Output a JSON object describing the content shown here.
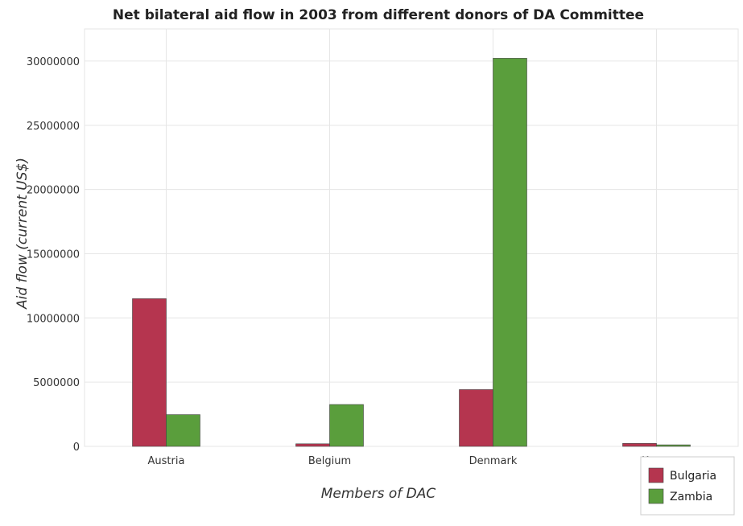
{
  "chart_data": {
    "type": "bar",
    "title": "Net bilateral aid flow in 2003 from different donors of DA Committee",
    "xlabel": "Members of DAC",
    "ylabel": "Aid flow (current US$)",
    "categories": [
      "Austria",
      "Belgium",
      "Denmark",
      "Korea"
    ],
    "series": [
      {
        "name": "Bulgaria",
        "color": "#b5354f",
        "values": [
          11500000,
          200000,
          4420000,
          230000
        ]
      },
      {
        "name": "Zambia",
        "color": "#5a9e3c",
        "values": [
          2470000,
          3260000,
          30220000,
          120000
        ]
      }
    ],
    "ylim": [
      0,
      32500000
    ],
    "yticks": [
      0,
      5000000,
      10000000,
      15000000,
      20000000,
      25000000,
      30000000
    ],
    "ytick_labels": [
      "0",
      "5000000",
      "10000000",
      "15000000",
      "20000000",
      "25000000",
      "30000000"
    ],
    "grid": true,
    "legend_position": "bottom-right"
  }
}
